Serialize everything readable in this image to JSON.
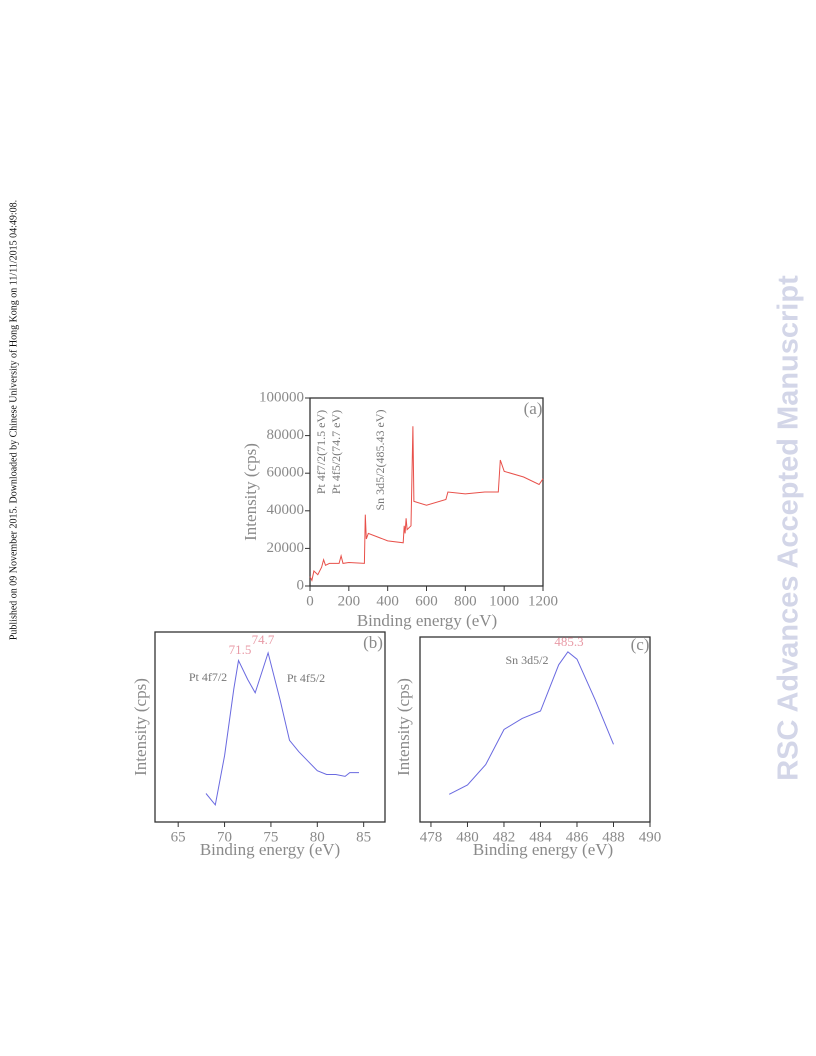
{
  "header": {
    "side_note": "Published on 09 November 2015. Downloaded by Chinese University of Hong Kong on 11/11/2015 04:49:08.",
    "watermark": "RSC Advances Accepted Manuscript"
  },
  "chart_data": [
    {
      "type": "line",
      "label": "(a)",
      "xlabel": "Binding energy (eV)",
      "ylabel": "Intensity (cps)",
      "color": "#e8504a",
      "x": [
        0,
        10,
        20,
        40,
        60,
        70,
        80,
        100,
        150,
        160,
        170,
        200,
        280,
        285,
        290,
        300,
        350,
        400,
        480,
        485,
        490,
        495,
        500,
        520,
        530,
        535,
        600,
        700,
        710,
        800,
        900,
        970,
        980,
        1000,
        1100,
        1180,
        1200
      ],
      "values": [
        5000,
        3000,
        8000,
        6000,
        10000,
        14000,
        11000,
        12000,
        12000,
        16000,
        12000,
        12500,
        12000,
        38000,
        25000,
        28000,
        26000,
        24000,
        23000,
        32000,
        28000,
        36000,
        30000,
        32000,
        85000,
        45000,
        43000,
        46000,
        50000,
        49000,
        50000,
        50000,
        67000,
        61000,
        58000,
        54000,
        57000
      ],
      "xlim": [
        0,
        1200
      ],
      "xticks": [
        0,
        200,
        400,
        600,
        800,
        1000,
        1200
      ],
      "ylim": [
        0,
        100000
      ],
      "yticks": [
        0,
        20000,
        40000,
        60000,
        80000,
        100000
      ],
      "annotations": [
        "Pt 4f7/2(71.5 eV)",
        "Pt 4f5/2(74.7 eV)",
        "Sn 3d5/2(485.43 eV)"
      ]
    },
    {
      "type": "line",
      "label": "(b)",
      "xlabel": "Binding energy (eV)",
      "ylabel": "Intensity (cps)",
      "color": "#6a6ae0",
      "x": [
        68,
        69,
        70,
        71,
        71.5,
        72.5,
        73.3,
        74.7,
        76,
        77,
        78,
        79,
        80,
        81,
        82,
        83,
        83.5,
        84.5
      ],
      "values": [
        15,
        9,
        35,
        70,
        85,
        75,
        68,
        89,
        64,
        43,
        37,
        32,
        27,
        25,
        25,
        24,
        26,
        26
      ],
      "xlim": [
        62.5,
        87.3
      ],
      "xticks": [
        65,
        70,
        75,
        80,
        85
      ],
      "ylim": [
        0,
        100
      ],
      "annotations": [
        "71.5",
        "74.7",
        "Pt 4f7/2",
        "Pt 4f5/2"
      ]
    },
    {
      "type": "line",
      "label": "(c)",
      "xlabel": "Binding energy (eV)",
      "ylabel": "Intensity (cps)",
      "color": "#6a6ae0",
      "x": [
        479,
        480,
        481,
        482,
        483,
        484,
        485,
        485.5,
        486,
        487,
        488
      ],
      "values": [
        15,
        20,
        31,
        50,
        56,
        60,
        85,
        92,
        88,
        66,
        42
      ],
      "xlim": [
        477.4,
        490
      ],
      "xticks": [
        478,
        480,
        482,
        484,
        486,
        488,
        490
      ],
      "ylim": [
        0,
        100
      ],
      "annotations": [
        "485.3",
        "Sn 3d5/2"
      ]
    }
  ]
}
